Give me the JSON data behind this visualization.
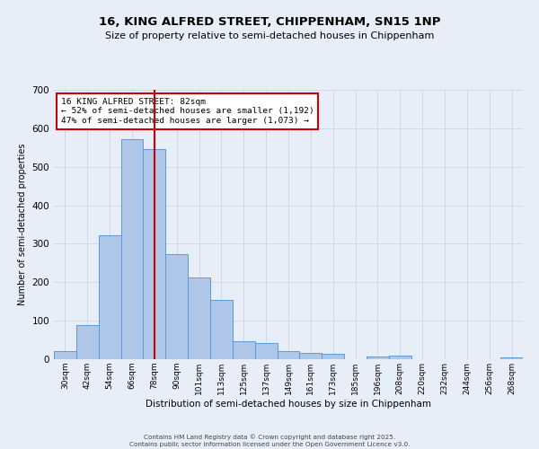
{
  "title1": "16, KING ALFRED STREET, CHIPPENHAM, SN15 1NP",
  "title2": "Size of property relative to semi-detached houses in Chippenham",
  "xlabel": "Distribution of semi-detached houses by size in Chippenham",
  "ylabel": "Number of semi-detached properties",
  "categories": [
    "30sqm",
    "42sqm",
    "54sqm",
    "66sqm",
    "78sqm",
    "90sqm",
    "101sqm",
    "113sqm",
    "125sqm",
    "137sqm",
    "149sqm",
    "161sqm",
    "173sqm",
    "185sqm",
    "196sqm",
    "208sqm",
    "220sqm",
    "232sqm",
    "244sqm",
    "256sqm",
    "268sqm"
  ],
  "values": [
    20,
    88,
    322,
    572,
    547,
    272,
    212,
    155,
    47,
    43,
    20,
    17,
    13,
    0,
    8,
    10,
    0,
    0,
    0,
    0,
    5
  ],
  "bar_color": "#aec6e8",
  "bar_edge_color": "#5b9bd5",
  "vline_color": "#cc0000",
  "annotation_title": "16 KING ALFRED STREET: 82sqm",
  "annotation_line1": "← 52% of semi-detached houses are smaller (1,192)",
  "annotation_line2": "47% of semi-detached houses are larger (1,073) →",
  "annotation_box_color": "#ffffff",
  "annotation_edge_color": "#cc0000",
  "grid_color": "#d0d8e8",
  "background_color": "#e8eef8",
  "ylim": [
    0,
    700
  ],
  "vline_position": 4.5,
  "footer": "Contains HM Land Registry data © Crown copyright and database right 2025.\nContains public sector information licensed under the Open Government Licence v3.0."
}
